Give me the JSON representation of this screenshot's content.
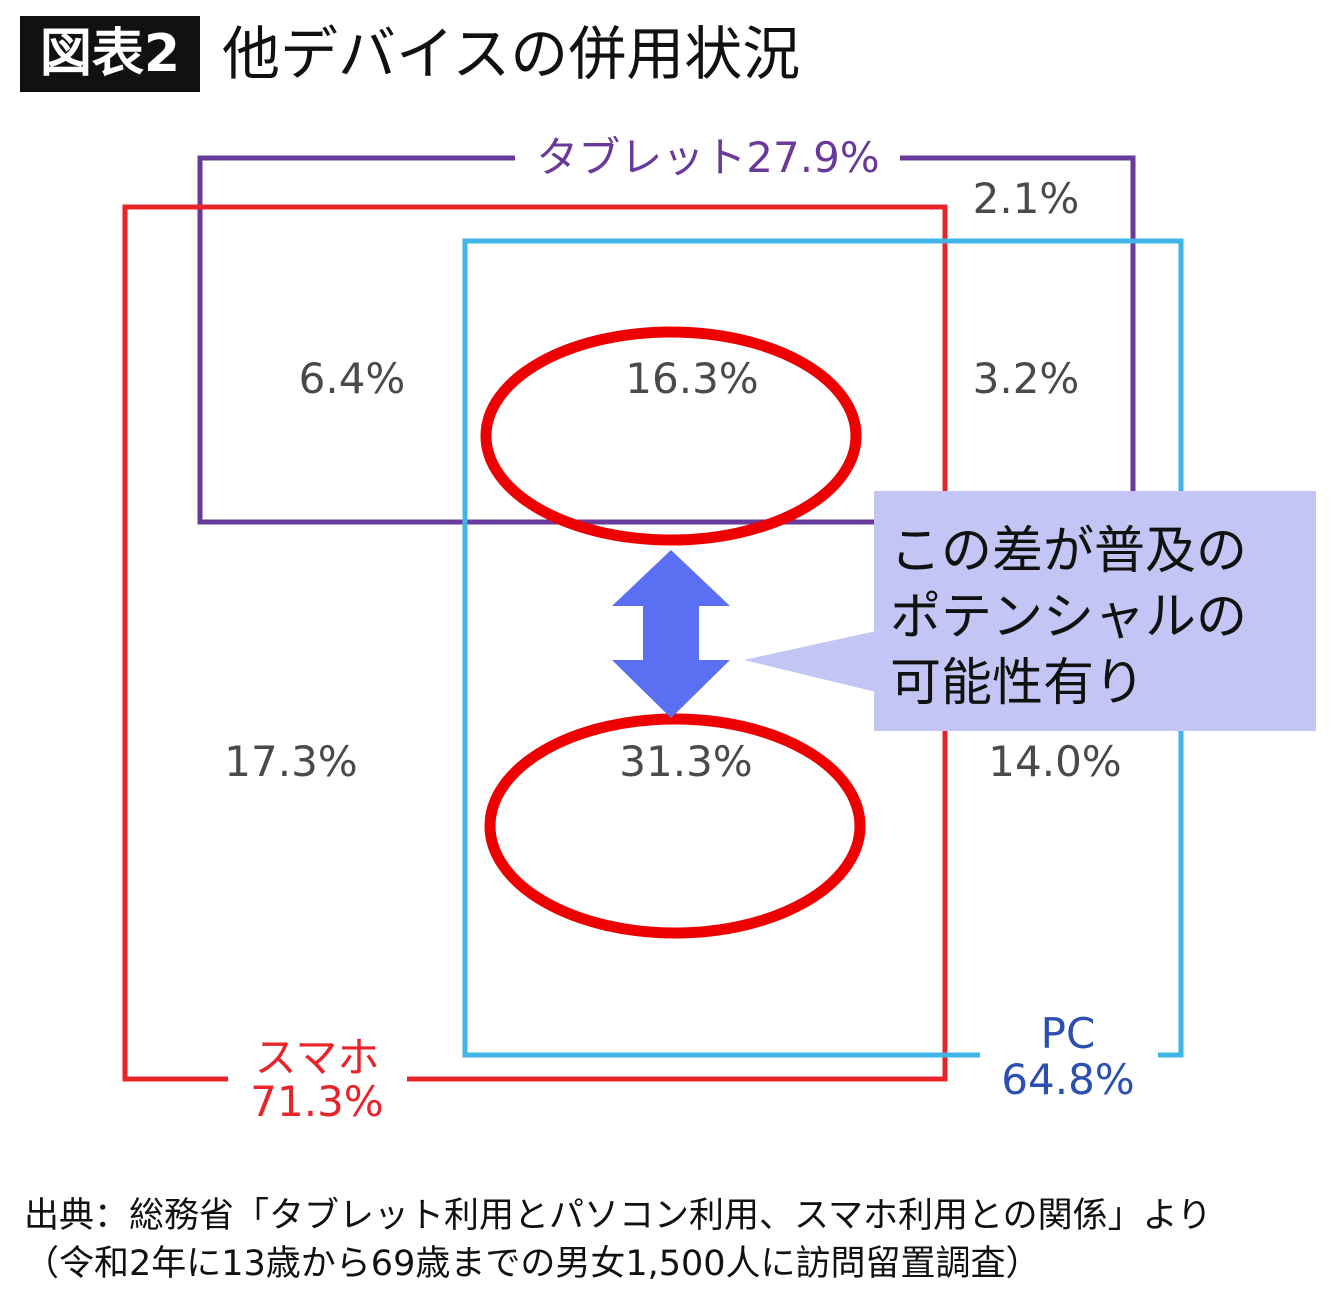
{
  "header": {
    "badge": "図表2",
    "title": "他デバイスの併用状況"
  },
  "colors": {
    "tablet": "#6a3a9a",
    "smartphone": "#e8242a",
    "pc": "#3fb6e6",
    "pc_label": "#2c4fb0",
    "highlight": "#ee0000",
    "arrow": "#5a6ff2",
    "callout_bg": "#c3c6f4"
  },
  "sets": {
    "tablet": {
      "label": "タブレット27.9%"
    },
    "smartphone": {
      "label_line1": "スマホ",
      "label_line2": "71.3%"
    },
    "pc": {
      "label_line1": "PC",
      "label_line2": "64.8%"
    }
  },
  "regions": {
    "tablet_only": "2.1%",
    "tablet_smartphone": "6.4%",
    "all_three": "16.3%",
    "tablet_pc": "3.2%",
    "smartphone_only": "17.3%",
    "smartphone_pc": "31.3%",
    "pc_only": "14.0%"
  },
  "callout": {
    "line1": "この差が普及の",
    "line2": "ポテンシャルの",
    "line3": "可能性有り"
  },
  "source": {
    "line1": "出典：総務省「タブレット利用とパソコン利用、スマホ利用との関係」より",
    "line2": "（令和2年に13歳から69歳までの男女1,500人に訪問留置調査）"
  }
}
